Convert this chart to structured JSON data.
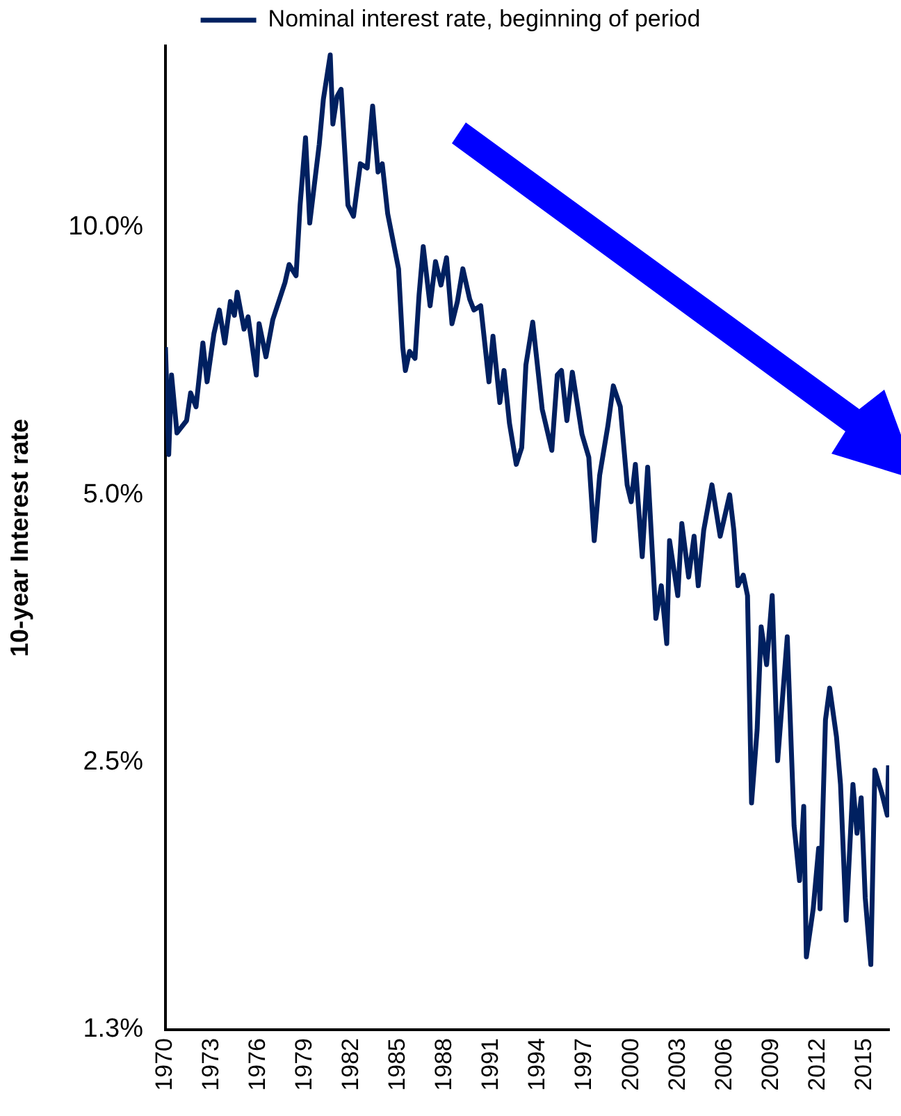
{
  "chart_data": {
    "type": "line",
    "ylabel": "10-year Interest rate",
    "log": true,
    "legend": "top",
    "marker": "none",
    "xlim": [
      1970,
      2016.6
    ],
    "xticks": [
      1970,
      1973,
      1976,
      1979,
      1982,
      1985,
      1988,
      1991,
      1994,
      1997,
      2000,
      2003,
      2006,
      2009,
      2012,
      2015
    ],
    "ylim": [
      1.25,
      16
    ],
    "yticks": [
      {
        "value": 1.25,
        "label": "1.3%"
      },
      {
        "value": 2.5,
        "label": "2.5%"
      },
      {
        "value": 5,
        "label": "5.0%"
      },
      {
        "value": 10,
        "label": "10.0%"
      }
    ],
    "series": [
      {
        "name": "Nominal interest rate, beginning of period",
        "color": "#002060",
        "x": [
          1970.0,
          1970.21,
          1970.39,
          1970.74,
          1971.36,
          1971.62,
          1971.97,
          1972.41,
          1972.68,
          1973.12,
          1973.47,
          1973.82,
          1974.18,
          1974.44,
          1974.62,
          1975.06,
          1975.32,
          1975.85,
          1976.03,
          1976.47,
          1976.91,
          1977.7,
          1977.96,
          1978.41,
          1978.67,
          1979.02,
          1979.29,
          1979.9,
          1980.17,
          1980.61,
          1980.78,
          1981.05,
          1981.31,
          1981.75,
          1982.11,
          1982.55,
          1982.99,
          1983.34,
          1983.69,
          1983.96,
          1984.31,
          1985.01,
          1985.28,
          1985.45,
          1985.72,
          1986.07,
          1986.33,
          1986.6,
          1987.04,
          1987.39,
          1987.74,
          1988.1,
          1988.45,
          1988.8,
          1989.15,
          1989.59,
          1989.86,
          1990.3,
          1990.83,
          1991.09,
          1991.53,
          1991.8,
          1992.15,
          1992.59,
          1992.94,
          1993.21,
          1993.65,
          1994.26,
          1994.88,
          1995.23,
          1995.5,
          1995.85,
          1996.2,
          1996.82,
          1997.26,
          1997.61,
          1997.96,
          1998.49,
          1998.84,
          1999.29,
          1999.73,
          1999.99,
          2000.26,
          2000.7,
          2001.05,
          2001.58,
          2001.93,
          2002.28,
          2002.46,
          2002.99,
          2003.25,
          2003.69,
          2004.04,
          2004.31,
          2004.66,
          2005.19,
          2005.72,
          2006.33,
          2006.6,
          2006.86,
          2007.21,
          2007.48,
          2007.74,
          2008.1,
          2008.36,
          2008.71,
          2009.07,
          2009.42,
          2010.04,
          2010.48,
          2010.83,
          2011.1,
          2011.27,
          2011.71,
          2012.06,
          2012.15,
          2012.5,
          2012.77,
          2013.21,
          2013.47,
          2013.83,
          2014.27,
          2014.53,
          2014.8,
          2015.06,
          2015.42,
          2015.68,
          2016.12,
          2016.48,
          2016.56
        ],
        "values": [
          7.33,
          5.55,
          6.82,
          5.87,
          6.06,
          6.51,
          6.28,
          7.41,
          6.7,
          7.59,
          8.07,
          7.41,
          8.25,
          7.96,
          8.45,
          7.68,
          7.93,
          6.82,
          7.79,
          7.15,
          7.87,
          8.67,
          9.08,
          8.82,
          10.59,
          12.61,
          10.11,
          12.39,
          13.94,
          15.63,
          13.07,
          14.04,
          14.3,
          10.59,
          10.29,
          11.79,
          11.66,
          13.69,
          11.54,
          11.79,
          10.36,
          8.98,
          7.33,
          6.9,
          7.25,
          7.12,
          8.39,
          9.51,
          8.16,
          9.15,
          8.61,
          9.24,
          7.79,
          8.25,
          8.98,
          8.3,
          8.07,
          8.16,
          6.7,
          7.54,
          6.35,
          6.9,
          6.02,
          5.41,
          5.65,
          7.0,
          7.82,
          6.24,
          5.61,
          6.82,
          6.9,
          6.06,
          6.87,
          5.85,
          5.51,
          4.44,
          5.26,
          5.98,
          6.63,
          6.28,
          5.13,
          4.91,
          5.41,
          4.26,
          5.37,
          3.63,
          3.95,
          3.4,
          4.44,
          3.85,
          4.64,
          4.04,
          4.49,
          3.95,
          4.56,
          5.13,
          4.49,
          5.0,
          4.56,
          3.95,
          4.06,
          3.85,
          2.25,
          2.72,
          3.55,
          3.22,
          3.85,
          2.51,
          3.46,
          2.12,
          1.84,
          2.23,
          1.51,
          1.71,
          2.0,
          1.71,
          2.79,
          3.03,
          2.67,
          2.36,
          1.66,
          2.36,
          2.08,
          2.28,
          1.76,
          1.48,
          2.45,
          2.31,
          2.18,
          2.48
        ]
      }
    ]
  }
}
